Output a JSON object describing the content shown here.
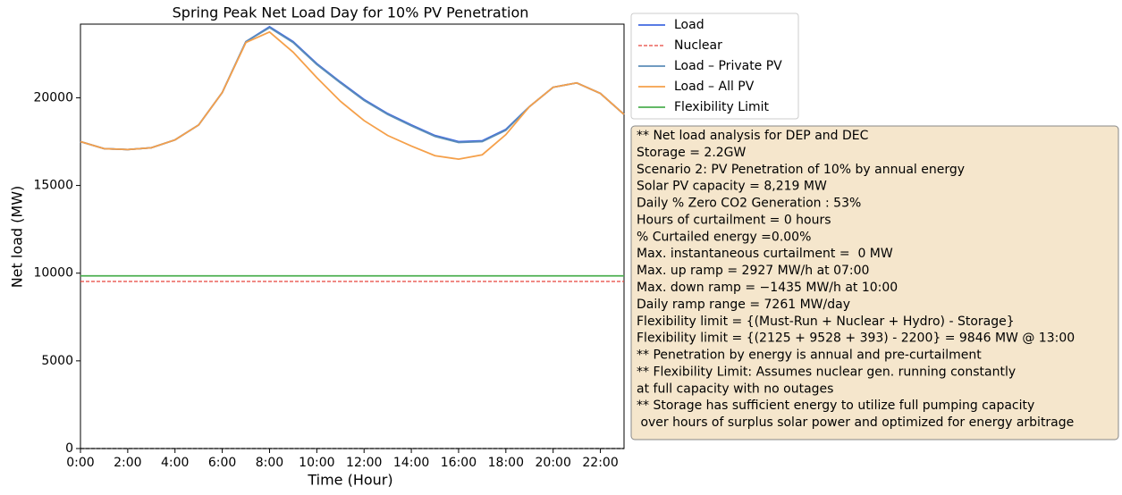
{
  "chart_data": {
    "type": "line",
    "title": "Spring Peak Net Load Day for 10% PV Penetration",
    "xlabel": "Time (Hour)",
    "ylabel": "Net load (MW)",
    "x": [
      0,
      1,
      2,
      3,
      4,
      5,
      6,
      7,
      8,
      9,
      10,
      11,
      12,
      13,
      14,
      15,
      16,
      17,
      18,
      19,
      20,
      21,
      22,
      23
    ],
    "xlim": [
      0,
      23
    ],
    "xticks": [
      {
        "value": 0,
        "label": "0:00"
      },
      {
        "value": 2,
        "label": "2:00"
      },
      {
        "value": 4,
        "label": "4:00"
      },
      {
        "value": 6,
        "label": "6:00"
      },
      {
        "value": 8,
        "label": "8:00"
      },
      {
        "value": 10,
        "label": "10:00"
      },
      {
        "value": 12,
        "label": "12:00"
      },
      {
        "value": 14,
        "label": "14:00"
      },
      {
        "value": 16,
        "label": "16:00"
      },
      {
        "value": 18,
        "label": "18:00"
      },
      {
        "value": 20,
        "label": "20:00"
      },
      {
        "value": 22,
        "label": "22:00"
      }
    ],
    "ylim": [
      0,
      24200
    ],
    "yticks": [
      0,
      5000,
      10000,
      15000,
      20000
    ],
    "series": [
      {
        "name": "Load",
        "color": "#4169e1",
        "values": [
          17500,
          17100,
          17050,
          17150,
          17600,
          18450,
          20300,
          23200,
          24050,
          23200,
          21950,
          20900,
          19900,
          19100,
          18450,
          17850,
          17500,
          17550,
          18200,
          19500,
          20600,
          20850,
          20250,
          19050
        ]
      },
      {
        "name": "Nuclear",
        "color": "#e8453c",
        "dash": true,
        "values": [
          9528,
          9528,
          9528,
          9528,
          9528,
          9528,
          9528,
          9528,
          9528,
          9528,
          9528,
          9528,
          9528,
          9528,
          9528,
          9528,
          9528,
          9528,
          9528,
          9528,
          9528,
          9528,
          9528,
          9528
        ]
      },
      {
        "name": "Load – Private PV",
        "color": "#5b8db8",
        "values": [
          17500,
          17100,
          17050,
          17150,
          17600,
          18450,
          20300,
          23200,
          24000,
          23150,
          21900,
          20850,
          19850,
          19050,
          18400,
          17800,
          17450,
          17500,
          18150,
          19500,
          20600,
          20850,
          20250,
          19050
        ]
      },
      {
        "name": "Load – All PV",
        "color": "#f5a04a",
        "values": [
          17500,
          17100,
          17050,
          17150,
          17600,
          18450,
          20300,
          23150,
          23750,
          22600,
          21150,
          19800,
          18700,
          17850,
          17250,
          16700,
          16500,
          16750,
          17900,
          19500,
          20600,
          20850,
          20250,
          19050
        ]
      },
      {
        "name": "Flexibility Limit",
        "color": "#4caf50",
        "values": [
          9846,
          9846,
          9846,
          9846,
          9846,
          9846,
          9846,
          9846,
          9846,
          9846,
          9846,
          9846,
          9846,
          9846,
          9846,
          9846,
          9846,
          9846,
          9846,
          9846,
          9846,
          9846,
          9846,
          9846
        ]
      },
      {
        "color": "#000000",
        "dash": true,
        "values": [
          0,
          0,
          0,
          0,
          0,
          0,
          0,
          0,
          0,
          0,
          0,
          0,
          0,
          0,
          0,
          0,
          0,
          0,
          0,
          0,
          0,
          0,
          0,
          0
        ]
      }
    ],
    "annotation": [
      "** Net load analysis for DEP and DEC",
      "Storage = 2.2GW",
      "Scenario 2: PV Penetration of 10% by annual energy",
      "Solar PV capacity = 8,219 MW",
      "Daily % Zero CO2 Generation : 53%",
      "Hours of curtailment = 0 hours",
      "% Curtailed energy =0.00%",
      "Max. instantaneous curtailment =  0 MW",
      "Max. up ramp = 2927 MW/h at 07:00",
      "Max. down ramp = −1435 MW/h at 10:00",
      "Daily ramp range = 7261 MW/day",
      "Flexibility limit = {(Must-Run + Nuclear + Hydro) - Storage}",
      "Flexibility limit = {(2125 + 9528 + 393) - 2200} = 9846 MW @ 13:00",
      "** Penetration by energy is annual and pre-curtailment",
      "** Flexibility Limit: Assumes nuclear gen. running constantly",
      "at full capacity with no outages",
      "** Storage has sufficient energy to utilize full pumping capacity",
      " over hours of surplus solar power and optimized for energy arbitrage"
    ]
  }
}
